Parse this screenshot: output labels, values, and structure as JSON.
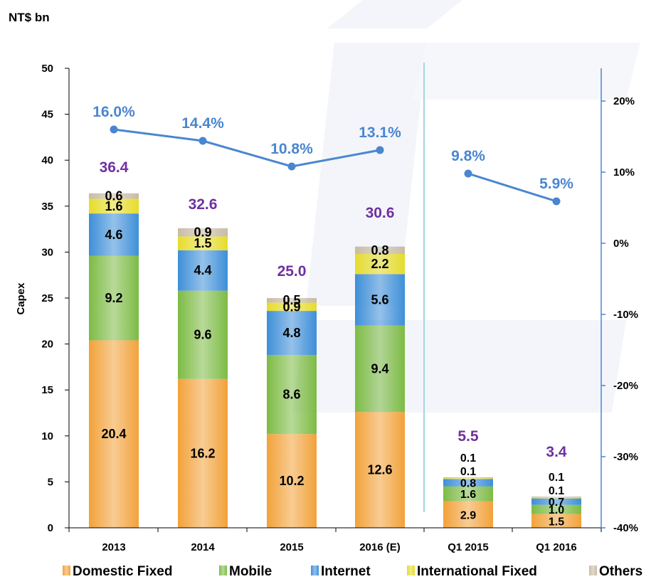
{
  "chart_data": {
    "type": "bar",
    "stacked": true,
    "unit_label": "NT$ bn",
    "ylabel": "Capex",
    "ylim": [
      0,
      50
    ],
    "y_ticks": [
      "0",
      "5",
      "10",
      "15",
      "20",
      "25",
      "30",
      "35",
      "40",
      "45",
      "50"
    ],
    "y2lim": [
      -40,
      25
    ],
    "y2_ticks": [
      "-40%",
      "-30%",
      "-20%",
      "-10%",
      "0%",
      "10%",
      "20%"
    ],
    "categories": [
      "2013",
      "2014",
      "2015",
      "2016 (E)",
      "Q1 2015",
      "Q1 2016"
    ],
    "series": [
      {
        "name": "Domestic Fixed",
        "color": "#f2a23a",
        "values": [
          20.4,
          16.2,
          10.2,
          12.6,
          2.9,
          1.5
        ]
      },
      {
        "name": "Mobile",
        "color": "#7dbb45",
        "values": [
          9.2,
          9.6,
          8.6,
          9.4,
          1.6,
          1.0
        ]
      },
      {
        "name": "Internet",
        "color": "#3e8fd8",
        "values": [
          4.6,
          4.4,
          4.8,
          5.6,
          0.8,
          0.7
        ]
      },
      {
        "name": "International Fixed",
        "color": "#e6dc2c",
        "values": [
          1.6,
          1.5,
          0.9,
          2.2,
          0.1,
          0.1
        ]
      },
      {
        "name": "Others",
        "color": "#c8bca6",
        "values": [
          0.6,
          0.9,
          0.5,
          0.8,
          0.1,
          0.1
        ]
      }
    ],
    "totals": [
      36.4,
      32.6,
      25.0,
      30.6,
      5.5,
      3.4
    ],
    "total_labels": [
      "36.4",
      "32.6",
      "25.0",
      "30.6",
      "5.5",
      "3.4"
    ],
    "ratio_line": {
      "color": "#4a86d0",
      "segments": [
        [
          0,
          1,
          2,
          3
        ],
        [
          4,
          5
        ]
      ],
      "values": [
        16.0,
        14.4,
        10.8,
        13.1,
        9.8,
        5.9
      ],
      "labels": [
        "16.0%",
        "14.4%",
        "10.8%",
        "13.1%",
        "9.8%",
        "5.9%"
      ]
    },
    "legend_position": "bottom",
    "colors": {
      "total_label": "#7030a0",
      "axis": "#000000",
      "right_axis": "#4a86d0",
      "divider": "#a8d4dc"
    }
  }
}
